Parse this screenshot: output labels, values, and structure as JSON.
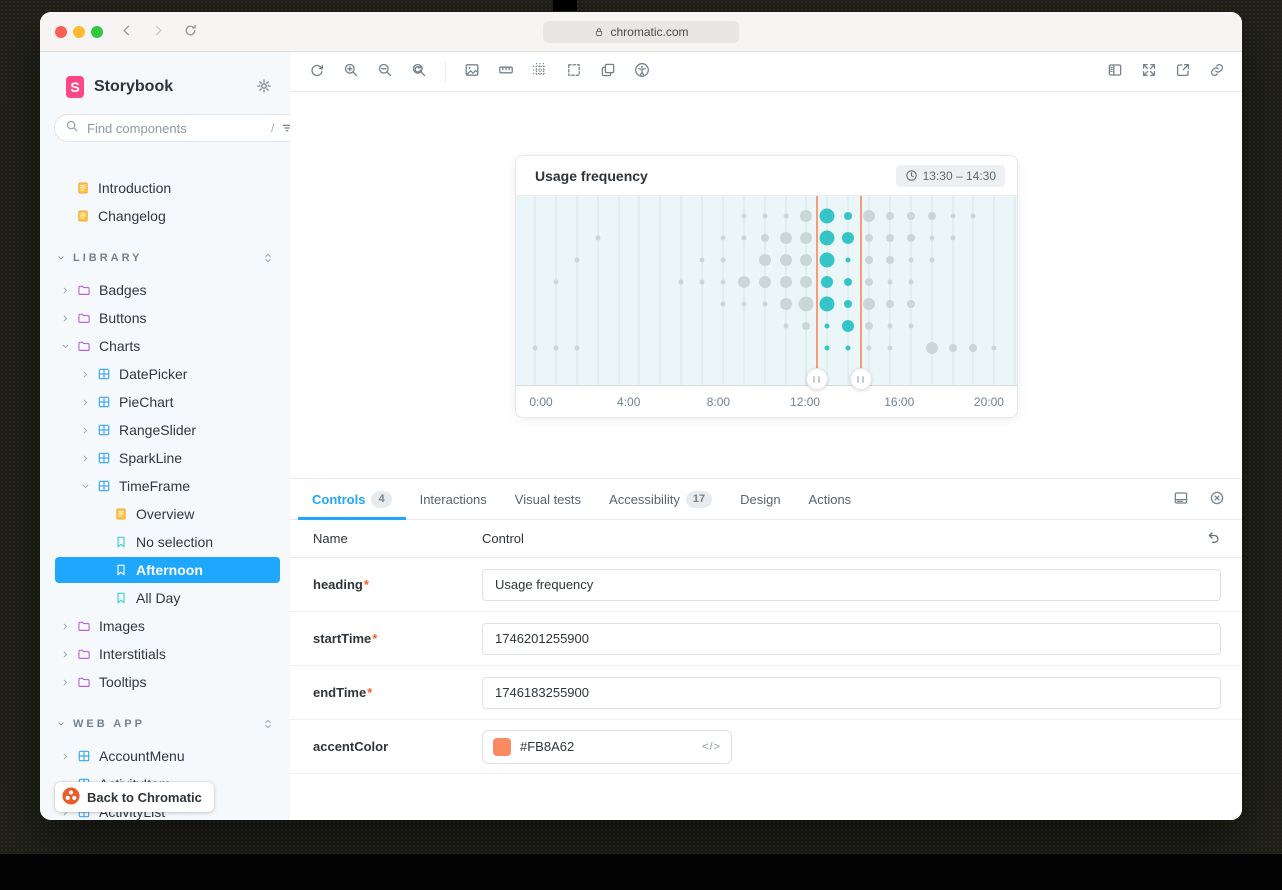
{
  "window": {
    "url": "chromatic.com"
  },
  "sidebar": {
    "brand": "Storybook",
    "search": {
      "placeholder": "Find components",
      "shortcut": "/"
    },
    "tree": [
      {
        "label": "Introduction",
        "kind": "doc",
        "depth": 0
      },
      {
        "label": "Changelog",
        "kind": "doc",
        "depth": 0
      },
      {
        "label": "LIBRARY",
        "kind": "section"
      },
      {
        "label": "Badges",
        "kind": "folder",
        "depth": 1,
        "expanded": false
      },
      {
        "label": "Buttons",
        "kind": "folder",
        "depth": 1,
        "expanded": false
      },
      {
        "label": "Charts",
        "kind": "folder",
        "depth": 1,
        "expanded": true
      },
      {
        "label": "DatePicker",
        "kind": "component",
        "depth": 2,
        "expanded": false
      },
      {
        "label": "PieChart",
        "kind": "component",
        "depth": 2,
        "expanded": false
      },
      {
        "label": "RangeSlider",
        "kind": "component",
        "depth": 2,
        "expanded": false
      },
      {
        "label": "SparkLine",
        "kind": "component",
        "depth": 2,
        "expanded": false
      },
      {
        "label": "TimeFrame",
        "kind": "component",
        "depth": 2,
        "expanded": true
      },
      {
        "label": "Overview",
        "kind": "doc",
        "depth": 3
      },
      {
        "label": "No selection",
        "kind": "story",
        "depth": 3
      },
      {
        "label": "Afternoon",
        "kind": "story",
        "depth": 3,
        "selected": true
      },
      {
        "label": "All Day",
        "kind": "story",
        "depth": 3
      },
      {
        "label": "Images",
        "kind": "folder",
        "depth": 1,
        "expanded": false
      },
      {
        "label": "Interstitials",
        "kind": "folder",
        "depth": 1,
        "expanded": false
      },
      {
        "label": "Tooltips",
        "kind": "folder",
        "depth": 1,
        "expanded": false
      },
      {
        "label": "WEB APP",
        "kind": "section"
      },
      {
        "label": "AccountMenu",
        "kind": "component",
        "depth": 1,
        "expanded": false
      },
      {
        "label": "ActivityItem",
        "kind": "component",
        "depth": 1,
        "expanded": false
      },
      {
        "label": "ActivityList",
        "kind": "component",
        "depth": 1,
        "expanded": false
      }
    ],
    "back_label": "Back to Chromatic"
  },
  "canvas_toolbar": {
    "left_icons": [
      "remount",
      "zoom-in",
      "zoom-out",
      "zoom-reset",
      "|",
      "background",
      "measure",
      "grid",
      "outline",
      "viewport",
      "accessibility"
    ],
    "right_icons": [
      "panel-right",
      "fullscreen",
      "new-tab",
      "link"
    ]
  },
  "card": {
    "title": "Usage frequency",
    "time_range": "13:30 – 14:30"
  },
  "chart_data": {
    "type": "bubble-matrix",
    "title": "Usage frequency",
    "x_axis": {
      "labels": [
        "0:00",
        "4:00",
        "8:00",
        "12:00",
        "16:00",
        "20:00"
      ],
      "label_pct": [
        5.0,
        22.5,
        40.4,
        57.7,
        76.5,
        94.4
      ],
      "hours_range": [
        0,
        24
      ]
    },
    "rows": 7,
    "size_scale": "0=none, 1=small, 2=medium, 3=large, 4=xlarge",
    "columns": [
      {
        "hour": 0,
        "selected": false,
        "sizes": [
          0,
          0,
          0,
          0,
          0,
          0,
          1
        ]
      },
      {
        "hour": 1,
        "selected": false,
        "sizes": [
          0,
          0,
          0,
          1,
          0,
          0,
          1
        ]
      },
      {
        "hour": 2,
        "selected": false,
        "sizes": [
          0,
          0,
          1,
          0,
          0,
          0,
          1
        ]
      },
      {
        "hour": 3,
        "selected": false,
        "sizes": [
          0,
          1,
          0,
          0,
          0,
          0,
          0
        ]
      },
      {
        "hour": 4,
        "selected": false,
        "sizes": [
          0,
          0,
          0,
          0,
          0,
          0,
          0
        ]
      },
      {
        "hour": 5,
        "selected": false,
        "sizes": [
          0,
          0,
          0,
          0,
          0,
          0,
          0
        ]
      },
      {
        "hour": 6,
        "selected": false,
        "sizes": [
          0,
          0,
          0,
          0,
          0,
          0,
          0
        ]
      },
      {
        "hour": 7,
        "selected": false,
        "sizes": [
          0,
          0,
          0,
          1,
          0,
          0,
          0
        ]
      },
      {
        "hour": 8,
        "selected": false,
        "sizes": [
          0,
          0,
          1,
          1,
          0,
          0,
          0
        ]
      },
      {
        "hour": 9,
        "selected": false,
        "sizes": [
          0,
          1,
          1,
          1,
          1,
          0,
          0
        ]
      },
      {
        "hour": 10,
        "selected": false,
        "sizes": [
          1,
          1,
          0,
          3,
          1,
          0,
          0
        ]
      },
      {
        "hour": 11,
        "selected": false,
        "sizes": [
          1,
          2,
          3,
          3,
          1,
          0,
          0
        ]
      },
      {
        "hour": 12,
        "selected": false,
        "sizes": [
          1,
          3,
          3,
          3,
          3,
          1,
          0
        ]
      },
      {
        "hour": 13,
        "selected": false,
        "sizes": [
          3,
          3,
          3,
          3,
          4,
          2,
          0
        ]
      },
      {
        "hour": 14,
        "selected": true,
        "sizes": [
          4,
          4,
          4,
          3,
          4,
          1,
          1
        ]
      },
      {
        "hour": 15,
        "selected": true,
        "sizes": [
          2,
          3,
          1,
          2,
          2,
          3,
          1
        ]
      },
      {
        "hour": 16,
        "selected": false,
        "sizes": [
          3,
          2,
          2,
          2,
          3,
          2,
          1
        ]
      },
      {
        "hour": 17,
        "selected": false,
        "sizes": [
          2,
          2,
          2,
          1,
          2,
          1,
          1
        ]
      },
      {
        "hour": 18,
        "selected": false,
        "sizes": [
          2,
          2,
          1,
          1,
          2,
          1,
          0
        ]
      },
      {
        "hour": 19,
        "selected": false,
        "sizes": [
          2,
          1,
          1,
          0,
          0,
          0,
          3
        ]
      },
      {
        "hour": 20,
        "selected": false,
        "sizes": [
          1,
          1,
          0,
          0,
          0,
          0,
          2
        ]
      },
      {
        "hour": 21,
        "selected": false,
        "sizes": [
          1,
          0,
          0,
          0,
          0,
          0,
          2
        ]
      },
      {
        "hour": 22,
        "selected": false,
        "sizes": [
          0,
          0,
          0,
          0,
          0,
          0,
          1
        ]
      },
      {
        "hour": 23,
        "selected": false,
        "sizes": [
          0,
          0,
          0,
          0,
          0,
          0,
          0
        ]
      }
    ],
    "selection": {
      "label": "13:30 – 14:30",
      "start_pct": 60.0,
      "end_pct": 68.8
    },
    "colors": {
      "selected_dot": "#35C5C6",
      "dot": "#C9D7D8",
      "background": "#EAF6F8",
      "gridline": "#D9E4E6",
      "selection_line": "#FB8A62"
    }
  },
  "panel": {
    "tabs": [
      {
        "label": "Controls",
        "badge": "4",
        "active": true
      },
      {
        "label": "Interactions"
      },
      {
        "label": "Visual tests"
      },
      {
        "label": "Accessibility",
        "badge": "17"
      },
      {
        "label": "Design"
      },
      {
        "label": "Actions"
      }
    ],
    "toolbar_icons": [
      "panel-bottom",
      "close-circle"
    ],
    "controls": {
      "columns": [
        "Name",
        "Control"
      ],
      "required_marker": "*",
      "code_glyph": "</>",
      "rows": [
        {
          "name": "heading",
          "required": true,
          "control": "text",
          "value": "Usage frequency"
        },
        {
          "name": "startTime",
          "required": true,
          "control": "text",
          "value": "1746201255900"
        },
        {
          "name": "endTime",
          "required": true,
          "control": "text",
          "value": "1746183255900"
        },
        {
          "name": "accentColor",
          "required": false,
          "control": "color",
          "value": "#FB8A62"
        }
      ]
    }
  },
  "colors": {
    "accent": "#FB8A62",
    "selection_blue": "#1EA7FD",
    "brand_pink": "#FF4785",
    "teal": "#35C5C6",
    "chromatic_orange": "#EA5C2B"
  }
}
